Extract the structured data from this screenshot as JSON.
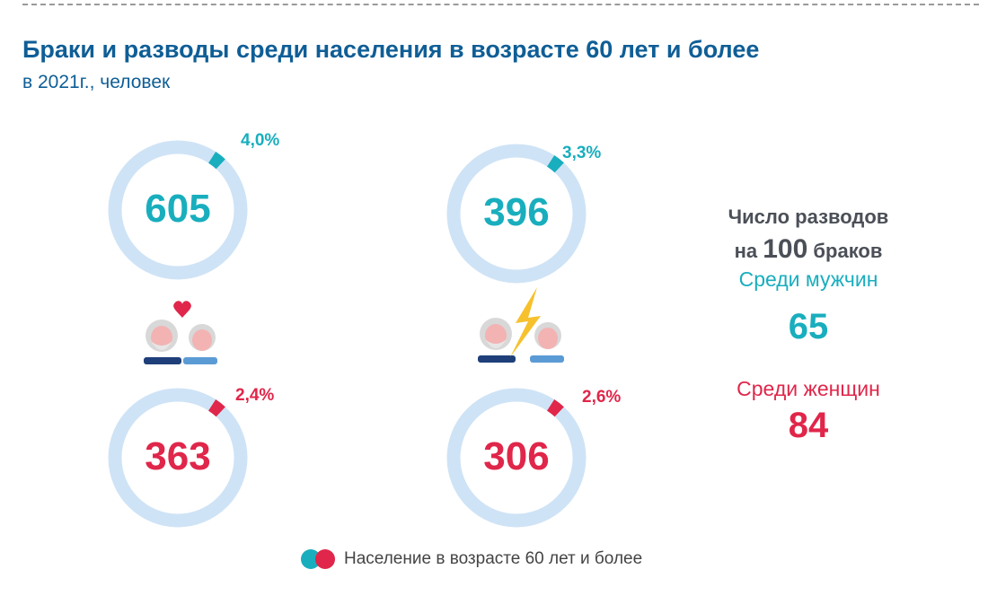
{
  "header": {
    "title": "Браки и разводы среди населения в возрасте 60 лет и более",
    "subtitle": "в 2021г., человек"
  },
  "chart_data": {
    "type": "donut",
    "title": "Браки и разводы среди населения в возрасте 60 лет и более",
    "subtitle": "в 2021г., человек",
    "rings": [
      {
        "group": "Браки",
        "sex": "Мужчины",
        "value": 605,
        "share_label": "4,0%",
        "share": 4.0,
        "color": "#19aebe"
      },
      {
        "group": "Разводы",
        "sex": "Мужчины",
        "value": 396,
        "share_label": "3,3%",
        "share": 3.3,
        "color": "#19aebe"
      },
      {
        "group": "Браки",
        "sex": "Женщины",
        "value": 363,
        "share_label": "2,4%",
        "share": 2.4,
        "color": "#e0264a"
      },
      {
        "group": "Разводы",
        "sex": "Женщины",
        "value": 306,
        "share_label": "2,6%",
        "share": 2.6,
        "color": "#e0264a"
      }
    ],
    "legend": "Население в возрасте 60 лет и более",
    "track_color": "#cfe3f6"
  },
  "side": {
    "line1": "Число разводов",
    "line2_pre": "на ",
    "line2_num": "100",
    "line2_post": " браков",
    "men_label": "Среди мужчин",
    "men_value": "65",
    "women_label": "Среди женщин",
    "women_value": "84"
  }
}
